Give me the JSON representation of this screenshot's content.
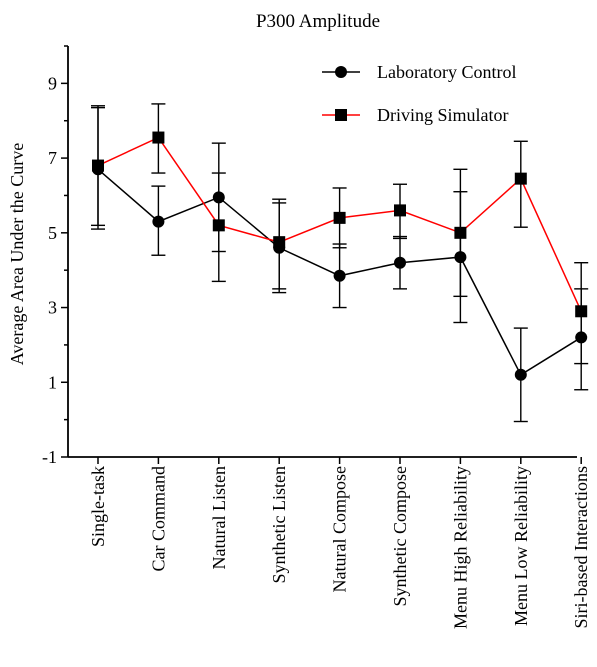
{
  "chart_data": {
    "type": "line",
    "title": "P300 Amplitude",
    "ylabel": "Average Area Under the Curve",
    "xlabel": "",
    "ylim": [
      -1,
      10
    ],
    "yticks": [
      -1,
      1,
      3,
      5,
      7,
      9
    ],
    "grid": false,
    "legend_position": "top-right",
    "categories": [
      "Single-task",
      "Car Command",
      "Natural Listen",
      "Synthetic Listen",
      "Natural Compose",
      "Synthetic Compose",
      "Menu High Reliability",
      "Menu Low Reliability",
      "Siri-based Interactions"
    ],
    "series": [
      {
        "name": "Laboratory Control",
        "color": "#000000",
        "marker": "circle",
        "values": [
          6.7,
          5.3,
          5.95,
          4.6,
          3.85,
          4.2,
          4.35,
          1.2,
          2.2
        ],
        "error_low": [
          5.1,
          4.4,
          3.7,
          3.4,
          3.0,
          3.5,
          2.6,
          -0.05,
          0.8
        ],
        "error_high": [
          8.4,
          6.25,
          7.4,
          5.9,
          4.7,
          4.9,
          6.1,
          2.45,
          3.5
        ]
      },
      {
        "name": "Driving Simulator",
        "color": "#ff0000",
        "marker": "square",
        "values": [
          6.8,
          7.55,
          5.2,
          4.75,
          5.4,
          5.6,
          5.0,
          6.45,
          2.9
        ],
        "error_low": [
          5.2,
          6.6,
          4.5,
          3.5,
          4.6,
          4.85,
          3.3,
          5.15,
          1.5
        ],
        "error_high": [
          8.35,
          8.45,
          6.6,
          5.8,
          6.2,
          6.3,
          6.7,
          7.45,
          4.2
        ]
      }
    ]
  }
}
